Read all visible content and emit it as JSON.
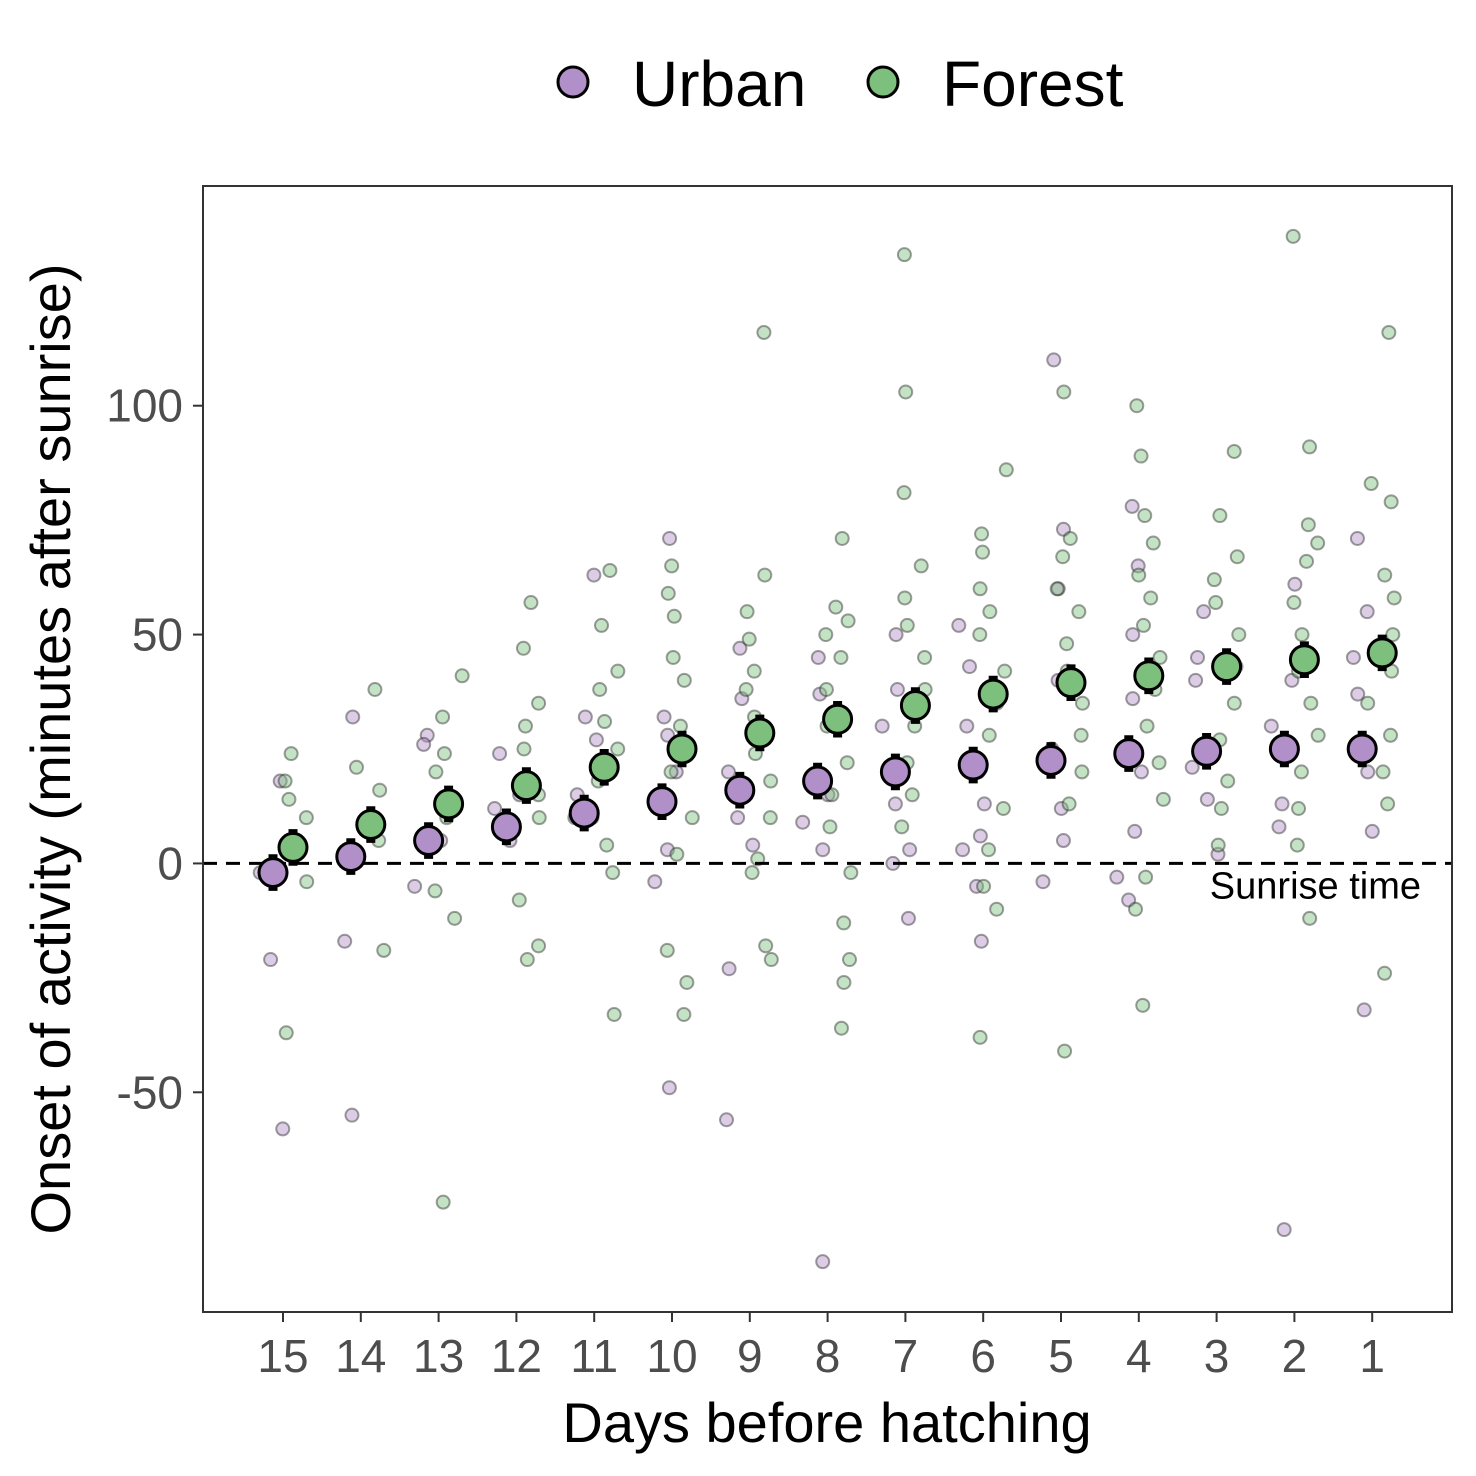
{
  "chart_data": {
    "type": "scatter",
    "xlabel": "Days before hatching",
    "ylabel": "Onset of activity (minutes after sunrise)",
    "categories": [
      "15",
      "14",
      "13",
      "12",
      "11",
      "10",
      "9",
      "8",
      "7",
      "6",
      "5",
      "4",
      "3",
      "2",
      "1"
    ],
    "ylim": [
      -98,
      148
    ],
    "yticks": [
      -50,
      0,
      50,
      100
    ],
    "grid": false,
    "legend_position": "top",
    "reference_line": {
      "y": 0,
      "style": "dashed",
      "label": "Sunrise time"
    },
    "colors": {
      "Urban": "#b18fc8",
      "Forest": "#7dbf7d"
    },
    "series": [
      {
        "name": "Urban",
        "mean": [
          -2,
          1.5,
          5,
          8,
          11,
          13.5,
          16,
          18,
          20,
          21.5,
          22.5,
          24,
          24.5,
          25,
          25
        ],
        "error": [
          4,
          4,
          4,
          4,
          4,
          4,
          4,
          4,
          4,
          4,
          4,
          4,
          4,
          4,
          4
        ],
        "points": [
          [
            18,
            -2,
            -21,
            -58
          ],
          [
            32,
            1,
            -17,
            -55
          ],
          [
            28,
            26,
            5,
            -5
          ],
          [
            24,
            15,
            5,
            12
          ],
          [
            63,
            32,
            27,
            15,
            10
          ],
          [
            71,
            32,
            28,
            20,
            3,
            -4,
            -49
          ],
          [
            47,
            36,
            20,
            10,
            4,
            -23,
            -56
          ],
          [
            45,
            37,
            15,
            9,
            3,
            -87
          ],
          [
            50,
            38,
            30,
            13,
            3,
            0,
            -12
          ],
          [
            52,
            43,
            30,
            20,
            13,
            6,
            3,
            -5,
            -17
          ],
          [
            110,
            73,
            60,
            40,
            25,
            12,
            5,
            -4
          ],
          [
            78,
            65,
            50,
            36,
            20,
            7,
            -3,
            -8
          ],
          [
            55,
            45,
            40,
            21,
            14,
            2
          ],
          [
            61,
            40,
            30,
            13,
            8,
            -80
          ],
          [
            71,
            55,
            45,
            37,
            20,
            7,
            -32
          ]
        ]
      },
      {
        "name": "Forest",
        "mean": [
          3.5,
          8.5,
          13,
          17,
          21,
          25,
          28.5,
          31.5,
          34.5,
          37,
          39.5,
          41,
          43,
          44.5,
          46
        ],
        "error": [
          4,
          4,
          4,
          4,
          4,
          4,
          4,
          4,
          4,
          4,
          4,
          4,
          4,
          4,
          4
        ],
        "points": [
          [
            24,
            18,
            14,
            10,
            -4,
            -37
          ],
          [
            38,
            21,
            16,
            5,
            -19
          ],
          [
            41,
            32,
            24,
            20,
            10,
            -6,
            -12,
            -74
          ],
          [
            57,
            47,
            35,
            30,
            25,
            15,
            10,
            -8,
            -18,
            -21
          ],
          [
            64,
            52,
            42,
            38,
            31,
            25,
            18,
            10,
            4,
            -2,
            -33
          ],
          [
            65,
            59,
            54,
            45,
            40,
            30,
            20,
            10,
            2,
            -19,
            -26,
            -33
          ],
          [
            116,
            63,
            55,
            49,
            42,
            38,
            32,
            24,
            18,
            10,
            1,
            -2,
            -18,
            -21
          ],
          [
            71,
            56,
            53,
            50,
            45,
            38,
            30,
            22,
            15,
            8,
            -2,
            -13,
            -21,
            -26,
            -36
          ],
          [
            133,
            103,
            81,
            65,
            58,
            52,
            45,
            38,
            30,
            22,
            15,
            8
          ],
          [
            86,
            72,
            68,
            60,
            55,
            50,
            42,
            35,
            28,
            20,
            12,
            3,
            -5,
            -10,
            -38
          ],
          [
            103,
            71,
            67,
            60,
            55,
            48,
            42,
            35,
            28,
            20,
            13,
            -41
          ],
          [
            100,
            89,
            76,
            70,
            63,
            58,
            52,
            45,
            38,
            30,
            22,
            14,
            -3,
            -10,
            -31
          ],
          [
            90,
            76,
            67,
            62,
            57,
            50,
            43,
            35,
            27,
            18,
            12,
            4
          ],
          [
            137,
            91,
            74,
            70,
            66,
            57,
            50,
            42,
            35,
            28,
            20,
            12,
            4,
            -12
          ],
          [
            116,
            83,
            79,
            63,
            58,
            50,
            42,
            35,
            28,
            20,
            13,
            -24
          ]
        ]
      }
    ]
  }
}
